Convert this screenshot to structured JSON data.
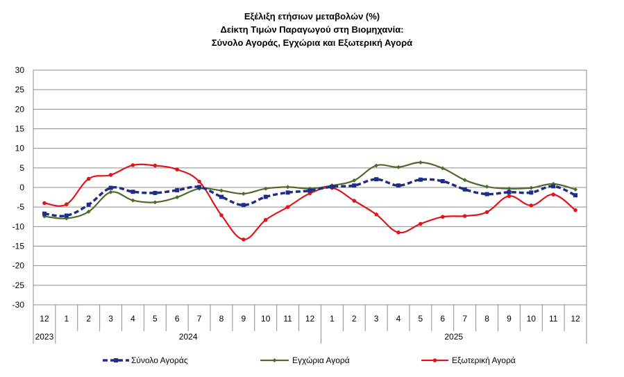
{
  "chart_data": {
    "type": "line",
    "title": [
      "Εξέλιξη ετήσιων μεταβολών (%)",
      "Δείκτη Τιμών Παραγωγού στη Βιομηχανία:",
      "Σύνολο Αγοράς, Εγχώρια και Εξωτερική Αγορά"
    ],
    "xlabel": "",
    "ylabel": "",
    "ylim": [
      -30,
      30
    ],
    "yticks": [
      30,
      25,
      20,
      15,
      10,
      5,
      0,
      -5,
      -10,
      -15,
      -20,
      -25,
      -30
    ],
    "grid": true,
    "legend_position": "bottom",
    "categories": [
      "12",
      "1",
      "2",
      "3",
      "4",
      "5",
      "6",
      "7",
      "8",
      "9",
      "10",
      "11",
      "12",
      "1",
      "2",
      "3",
      "4",
      "5",
      "6",
      "7",
      "8",
      "9",
      "10",
      "11",
      "12"
    ],
    "year_groups": [
      {
        "label": "2023",
        "start": 0,
        "end": 0
      },
      {
        "label": "2024",
        "start": 1,
        "end": 12
      },
      {
        "label": "2025",
        "start": 13,
        "end": 24
      }
    ],
    "series": [
      {
        "name": "Σύνολο Αγοράς",
        "color": "#1f2d86",
        "style": "dashed",
        "values": [
          -6.7,
          -7.2,
          -4.4,
          -0.1,
          -1.1,
          -1.4,
          -0.7,
          0.1,
          -2.4,
          -4.5,
          -2.4,
          -1.3,
          -0.8,
          0.2,
          0.5,
          2.1,
          0.5,
          2.0,
          1.6,
          -0.5,
          -1.7,
          -1.2,
          -1.3,
          0.3,
          -2.0
        ]
      },
      {
        "name": "Εγχώρια Αγορά",
        "color": "#4d6a2b",
        "style": "solid",
        "values": [
          -7.4,
          -7.9,
          -6.2,
          -1.2,
          -3.3,
          -3.8,
          -2.5,
          -0.3,
          -0.8,
          -1.6,
          -0.3,
          0.1,
          -0.3,
          0.5,
          1.8,
          5.6,
          5.2,
          6.4,
          4.9,
          1.9,
          0.2,
          -0.3,
          -0.1,
          0.9,
          -0.5
        ]
      },
      {
        "name": "Εξωτερική Αγορά",
        "color": "#e0141b",
        "style": "solid",
        "values": [
          -4.0,
          -4.3,
          2.2,
          3.2,
          5.7,
          5.6,
          4.6,
          1.5,
          -7.1,
          -13.3,
          -8.3,
          -5.0,
          -1.5,
          -0.1,
          -3.4,
          -6.9,
          -11.5,
          -9.3,
          -7.5,
          -7.3,
          -6.3,
          -2.2,
          -4.6,
          -1.8,
          -5.8
        ]
      }
    ]
  }
}
